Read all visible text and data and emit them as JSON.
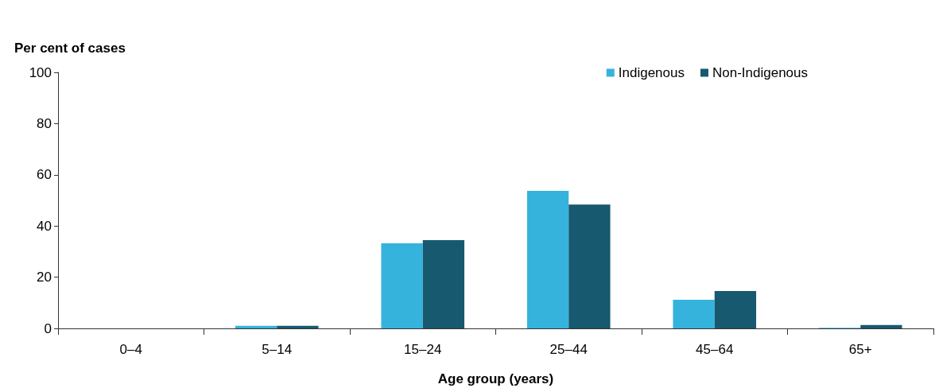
{
  "chart_data": {
    "type": "bar",
    "xlabel": "Age group (years)",
    "ylabel": "Per cent of cases",
    "categories": [
      "0–4",
      "5–14",
      "15–24",
      "25–44",
      "45–64",
      "65+"
    ],
    "series": [
      {
        "name": "Indigenous",
        "color": "#35b3dc",
        "values": [
          0,
          1,
          33.2,
          53.7,
          11.2,
          0.2
        ]
      },
      {
        "name": "Non-Indigenous",
        "color": "#17596f",
        "values": [
          0,
          1,
          34.5,
          48.4,
          14.6,
          1.3
        ]
      }
    ],
    "ylim": [
      0,
      100
    ],
    "yticks": [
      0,
      20,
      40,
      60,
      80,
      100
    ],
    "grid": false,
    "legend": "top right"
  }
}
